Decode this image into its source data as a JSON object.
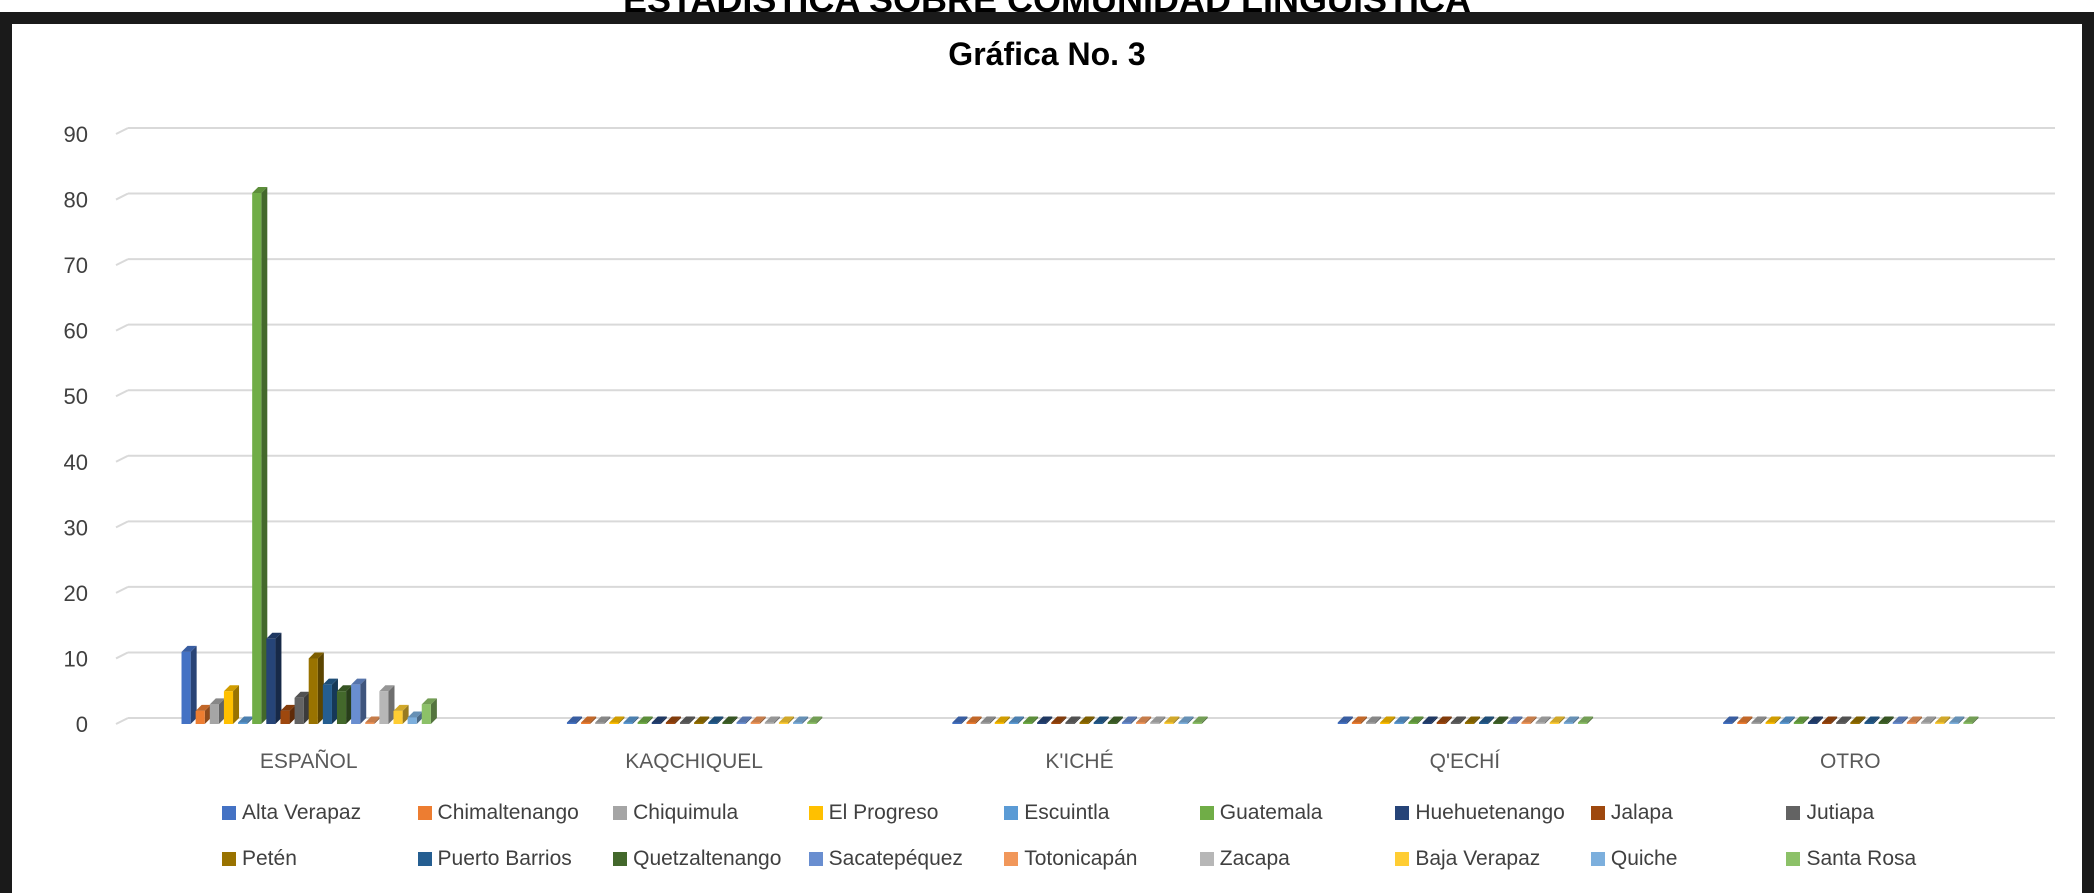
{
  "page": {
    "heading": "ESTADISTICA SOBRE COMUNIDAD LINGUISTICA"
  },
  "chart_data": {
    "type": "bar",
    "title": "Gráfica No. 3",
    "xlabel": "",
    "ylabel": "",
    "ylim": [
      0,
      90
    ],
    "yticks": [
      0,
      10,
      20,
      30,
      40,
      50,
      60,
      70,
      80,
      90
    ],
    "grid": true,
    "legend_placement": "bottom",
    "categories": [
      "ESPAÑOL",
      "KAQCHIQUEL",
      "K'ICHÉ",
      "Q'ECHÍ",
      "OTRO"
    ],
    "series": [
      {
        "name": "Alta Verapaz",
        "color": "#4472C4",
        "values": [
          11,
          0,
          0,
          0,
          0
        ]
      },
      {
        "name": "Chimaltenango",
        "color": "#ED7D31",
        "values": [
          2,
          0,
          0,
          0,
          0
        ]
      },
      {
        "name": "Chiquimula",
        "color": "#A5A5A5",
        "values": [
          3,
          0,
          0,
          0,
          0
        ]
      },
      {
        "name": "El Progreso",
        "color": "#FFC000",
        "values": [
          5,
          0,
          0,
          0,
          0
        ]
      },
      {
        "name": "Escuintla",
        "color": "#5B9BD5",
        "values": [
          0,
          0,
          0,
          0,
          0
        ]
      },
      {
        "name": "Guatemala",
        "color": "#70AD47",
        "values": [
          81,
          0,
          0,
          0,
          0
        ]
      },
      {
        "name": "Huehuetenango",
        "color": "#264478",
        "values": [
          13,
          0,
          0,
          0,
          0
        ]
      },
      {
        "name": "Jalapa",
        "color": "#9E480E",
        "values": [
          2,
          0,
          0,
          0,
          0
        ]
      },
      {
        "name": "Jutiapa",
        "color": "#636363",
        "values": [
          4,
          0,
          0,
          0,
          0
        ]
      },
      {
        "name": "Petén",
        "color": "#997300",
        "values": [
          10,
          0,
          0,
          0,
          0
        ]
      },
      {
        "name": "Puerto Barrios",
        "color": "#255E91",
        "values": [
          6,
          0,
          0,
          0,
          0
        ]
      },
      {
        "name": "Quetzaltenango",
        "color": "#43682B",
        "values": [
          5,
          0,
          0,
          0,
          0
        ]
      },
      {
        "name": "Sacatepéquez",
        "color": "#698ED0",
        "values": [
          6,
          0,
          0,
          0,
          0
        ]
      },
      {
        "name": "Totonicapán",
        "color": "#F1975A",
        "values": [
          0,
          0,
          0,
          0,
          0
        ]
      },
      {
        "name": "Zacapa",
        "color": "#B7B7B7",
        "values": [
          5,
          0,
          0,
          0,
          0
        ]
      },
      {
        "name": "Baja Verapaz",
        "color": "#FFCD33",
        "values": [
          2,
          0,
          0,
          0,
          0
        ]
      },
      {
        "name": "Quiche",
        "color": "#7CAFDD",
        "values": [
          1,
          0,
          0,
          0,
          0
        ]
      },
      {
        "name": "Santa Rosa",
        "color": "#8CC168",
        "values": [
          3,
          0,
          0,
          0,
          0
        ]
      }
    ]
  }
}
